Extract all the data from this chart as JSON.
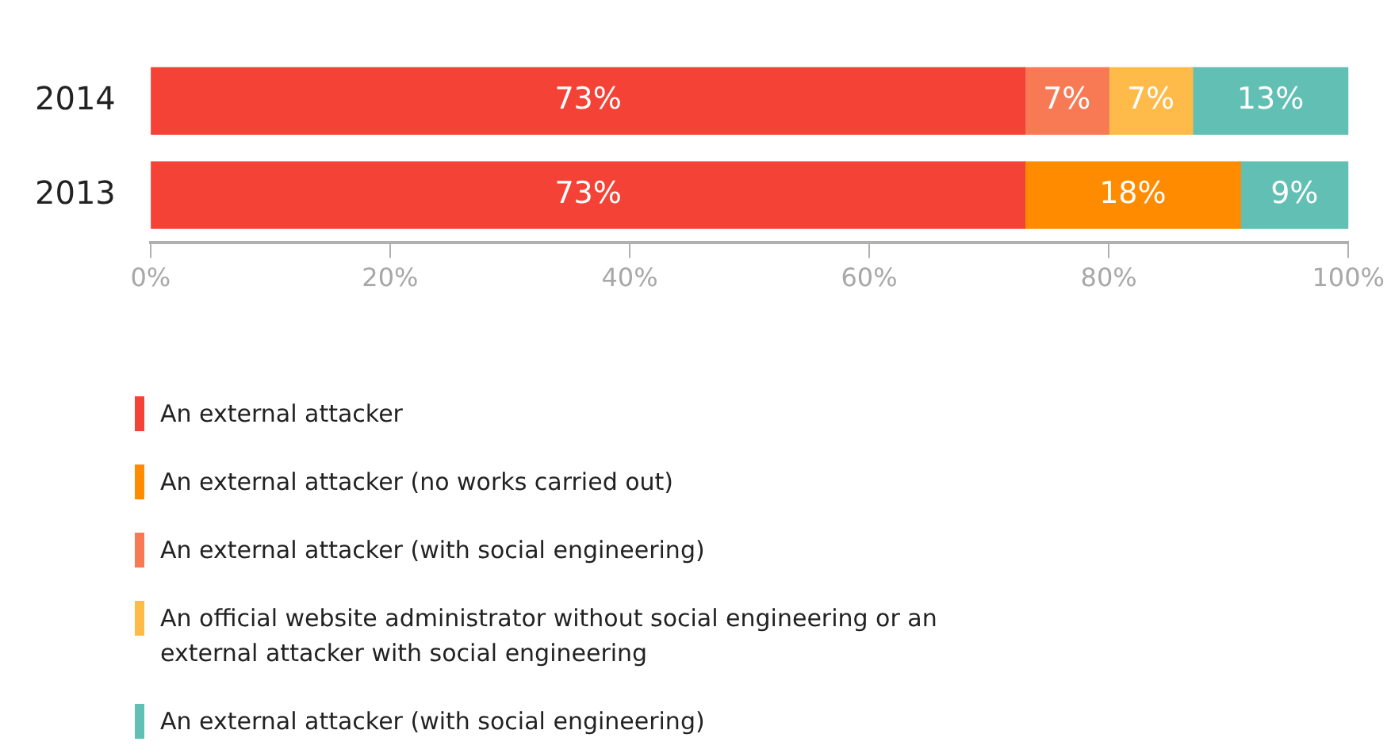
{
  "chart_data": {
    "type": "bar",
    "orientation": "horizontal",
    "stacked": true,
    "categories": [
      "2014",
      "2013"
    ],
    "series": [
      {
        "name": "An external attacker",
        "color": "#f44336",
        "values": [
          73,
          73
        ],
        "value_labels": [
          "73%",
          "73%"
        ]
      },
      {
        "name": "An external attacker (no works carried out)",
        "color": "#ff8c00",
        "values": [
          null,
          18
        ],
        "value_labels": [
          null,
          "18%"
        ]
      },
      {
        "name": "An external attacker (with social engineering)",
        "color": "#f77a55",
        "values": [
          7,
          null
        ],
        "value_labels": [
          "7%",
          null
        ]
      },
      {
        "name": "An official website administrator without social engineering or an external attacker with social engineering",
        "color": "#ffbb4a",
        "values": [
          7,
          null
        ],
        "value_labels": [
          "7%",
          null
        ]
      },
      {
        "name": "An external attacker (with social engineering)",
        "color": "#62bfb4",
        "values": [
          13,
          9
        ],
        "value_labels": [
          "13%",
          "9%"
        ]
      }
    ],
    "xlim": [
      0,
      100
    ],
    "xticks": [
      {
        "value": 0,
        "label": "0%"
      },
      {
        "value": 20,
        "label": "20%"
      },
      {
        "value": 40,
        "label": "40%"
      },
      {
        "value": 60,
        "label": "60%"
      },
      {
        "value": 80,
        "label": "80%"
      },
      {
        "value": 100,
        "label": "100%"
      }
    ],
    "grid": false,
    "legend": "bottom"
  }
}
